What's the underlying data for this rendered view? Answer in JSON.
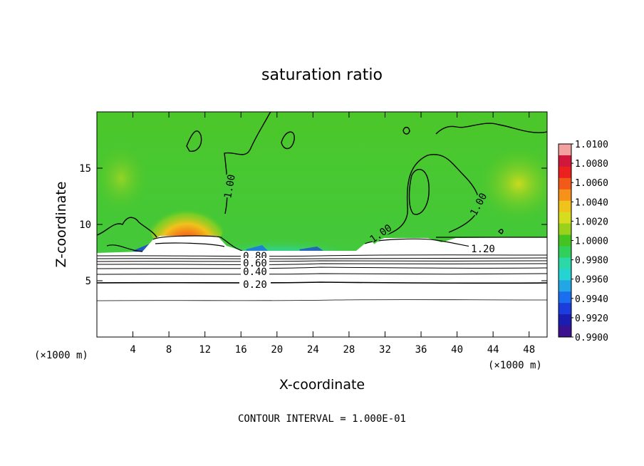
{
  "chart_data": {
    "type": "heatmap",
    "title": "saturation ratio",
    "xlabel": "X-coordinate",
    "ylabel": "Z-coordinate",
    "x_unit_label": "(×1000 m)",
    "y_unit_label": "(×1000 m)",
    "xlim": [
      0,
      50
    ],
    "ylim": [
      0,
      20
    ],
    "x_ticks": [
      4,
      8,
      12,
      16,
      20,
      24,
      28,
      32,
      36,
      40,
      44,
      48
    ],
    "y_ticks": [
      5,
      10,
      15
    ],
    "x_tick_labels": [
      "4",
      "8",
      "12",
      "16",
      "20",
      "24",
      "28",
      "32",
      "36",
      "40",
      "44",
      "48"
    ],
    "y_tick_labels": [
      "5",
      "10",
      "15"
    ],
    "colorbar": {
      "min": 0.99,
      "max": 1.01,
      "labels": [
        "1.0100",
        "1.0080",
        "1.0060",
        "1.0040",
        "1.0020",
        "1.0000",
        "0.9980",
        "0.9960",
        "0.9940",
        "0.9920",
        "0.9900"
      ],
      "colors": [
        "#d1173b",
        "#ed2020",
        "#f25a1a",
        "#f6921a",
        "#f0c21c",
        "#d6dd1e",
        "#99d11c",
        "#44c421",
        "#30d05a",
        "#2bd8a6",
        "#25d3d3",
        "#22a6e6",
        "#1a6ef0",
        "#1c3ddb",
        "#1b1db0",
        "#3a128f",
        "#5e1090",
        "#f3a0a0"
      ]
    },
    "contour_labels": [
      "1.00",
      "1.00",
      "1.00",
      "1.00",
      "1.20",
      "0.80",
      "0.60",
      "0.40",
      "0.20"
    ],
    "contour_interval_label": "CONTOUR INTERVAL = 1.000E-01"
  }
}
